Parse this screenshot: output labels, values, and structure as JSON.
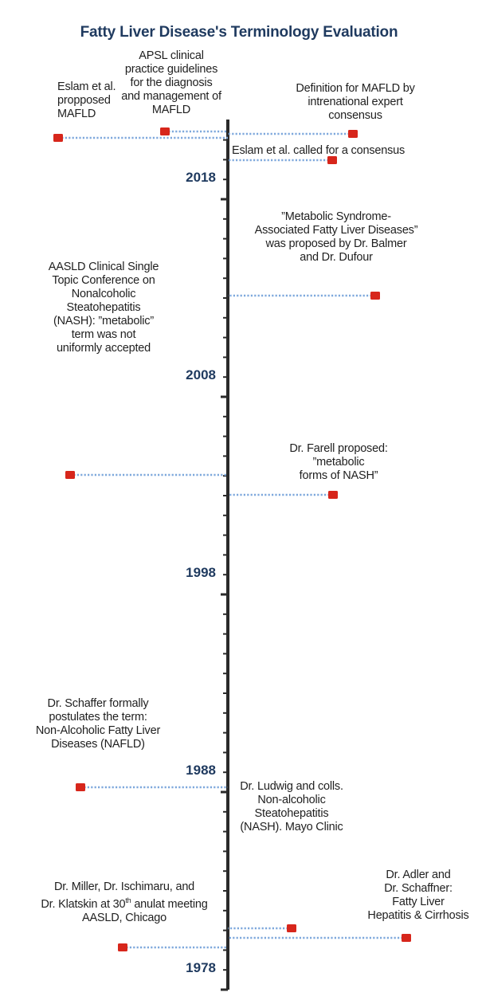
{
  "title": "Fatty Liver Disease's Terminology Evaluation",
  "timeline": {
    "year_labels": [
      "2018",
      "2008",
      "1998",
      "1988",
      "1978"
    ],
    "marker_color": "#d7261b",
    "connector_color": "#7ea8dc",
    "axis_color": "#2a2a2a",
    "year_color": "#1f3a5f"
  },
  "events": [
    {
      "lines": [
        "Eslam et al.",
        "propposed",
        "MAFLD"
      ]
    },
    {
      "lines": [
        "APSL clinical",
        "practice guidelines",
        "for the diagnosis",
        "and management of",
        "MAFLD"
      ]
    },
    {
      "lines": [
        "Definition for MAFLD by",
        "intrenational expert",
        "consensus"
      ]
    },
    {
      "lines": [
        "Eslam et al. called for a consensus"
      ]
    },
    {
      "lines": [
        "”Metabolic Syndrome-",
        "Associated Fatty Liver Diseases”",
        "was proposed by Dr. Balmer",
        "and Dr. Dufour"
      ]
    },
    {
      "lines": [
        "AASLD Clinical Single",
        "Topic Conference on",
        "Nonalcoholic",
        "Steatohepatitis",
        "(NASH): ”metabolic”",
        "term was not",
        "uniformly accepted"
      ]
    },
    {
      "lines": [
        "Dr. Farell proposed:",
        "”metabolic",
        "forms of NASH”"
      ]
    },
    {
      "lines": [
        "Dr. Schaffer formally",
        "postulates the term:",
        "Non-Alcoholic Fatty Liver",
        "Diseases (NAFLD)"
      ]
    },
    {
      "lines": [
        "Dr. Ludwig and colls.",
        "Non-alcoholic",
        "Steatohepatitis",
        "(NASH). Mayo Clinic"
      ]
    },
    {
      "lines": [
        "Dr. Miller, Dr. Ischimaru, and",
        "Dr. Klatskin at 30",
        "th",
        " anulat meeting",
        "AASLD, Chicago"
      ]
    },
    {
      "lines": [
        "Dr. Adler and",
        "Dr. Schaffner:",
        "Fatty Liver",
        "Hepatitis & Cirrhosis"
      ]
    }
  ]
}
